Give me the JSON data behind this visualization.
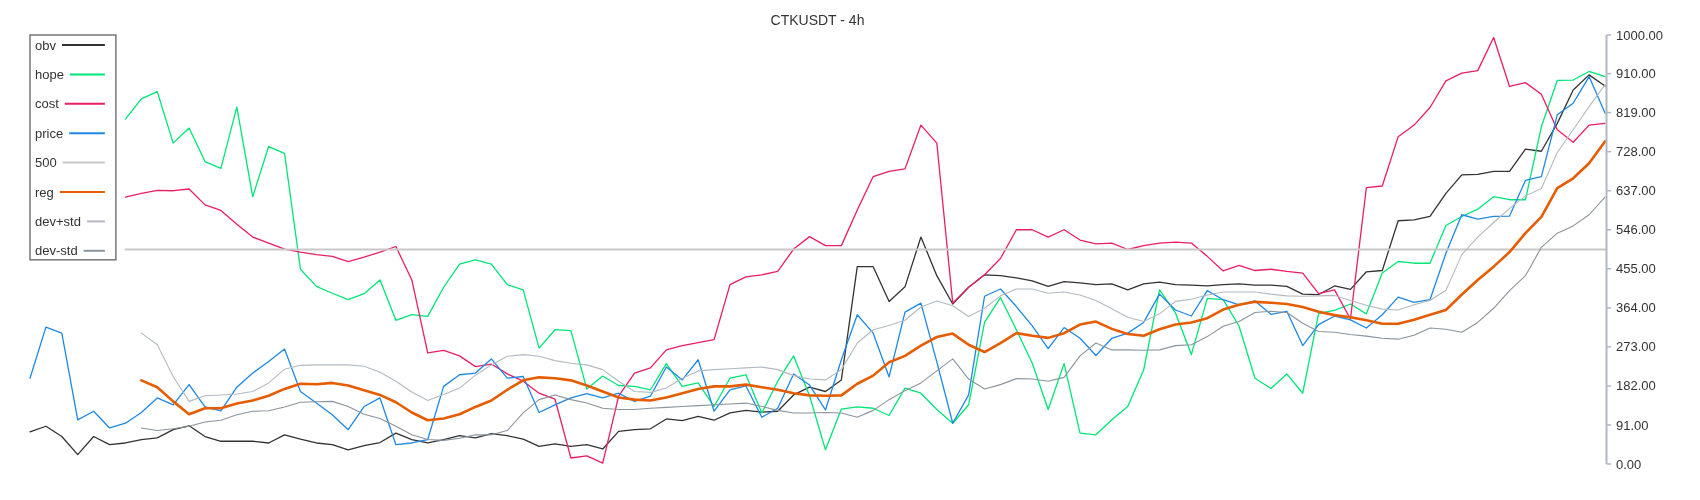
{
  "chart_data": {
    "type": "line",
    "title": "CTKUSDT - 4h",
    "categories": [
      null,
      null,
      null,
      null,
      null,
      null,
      null,
      null,
      null,
      null,
      null,
      null,
      null,
      null,
      null,
      null,
      null,
      null,
      null,
      null,
      null,
      null,
      null,
      null,
      null,
      null,
      null,
      null,
      null,
      null,
      null,
      null,
      null,
      null,
      null,
      null,
      null,
      null,
      null,
      null,
      null,
      null,
      null,
      null,
      null,
      null,
      null,
      null,
      null,
      null,
      null,
      null,
      null,
      null,
      null,
      null,
      null,
      null,
      null,
      null,
      null,
      null,
      null,
      null,
      null,
      null,
      null,
      null,
      null,
      null,
      null,
      null,
      null,
      null,
      null,
      null,
      null,
      null,
      null,
      null,
      null,
      null,
      null,
      null,
      null,
      null,
      null,
      null,
      null,
      null,
      null,
      null,
      null,
      null,
      null,
      null,
      null,
      null,
      null,
      null
    ],
    "series": [
      {
        "name": "obv",
        "color": "#333333",
        "values": [
          75,
          88,
          64,
          22,
          64,
          45,
          49,
          57,
          61,
          80,
          89,
          64,
          53,
          53,
          53,
          49,
          68,
          58,
          49,
          45,
          33,
          43,
          50,
          72,
          57,
          49,
          57,
          66,
          61,
          71,
          66,
          58,
          41,
          47,
          41,
          45,
          35,
          76,
          80,
          82,
          105,
          101,
          111,
          102,
          119,
          125,
          121,
          123,
          161,
          179,
          169,
          196,
          460,
          460,
          379,
          413,
          529,
          439,
          373,
          412,
          441,
          439,
          434,
          427,
          414,
          425,
          422,
          418,
          420,
          406,
          420,
          424,
          418,
          417,
          415,
          418,
          420,
          417,
          417,
          414,
          396,
          395,
          415,
          407,
          448,
          451,
          567,
          569,
          577,
          631,
          674,
          675,
          682,
          682,
          734,
          729,
          794,
          872,
          907,
          881
        ]
      },
      {
        "name": "hope",
        "color": "#00e676",
        "values": [
          null,
          null,
          null,
          null,
          null,
          null,
          804,
          851,
          868,
          748,
          783,
          705,
          689,
          832,
          623,
          740,
          724,
          454,
          414,
          398,
          383,
          397,
          429,
          335,
          348,
          344,
          412,
          466,
          476,
          466,
          418,
          406,
          270,
          313,
          311,
          175,
          205,
          183,
          181,
          173,
          234,
          181,
          189,
          134,
          200,
          208,
          119,
          193,
          252,
          159,
          33,
          128,
          133,
          130,
          113,
          177,
          165,
          127,
          95,
          138,
          330,
          388,
          313,
          235,
          127,
          234,
          72,
          68,
          103,
          134,
          219,
          406,
          352,
          255,
          386,
          383,
          321,
          200,
          176,
          210,
          165,
          351,
          358,
          373,
          350,
          445,
          472,
          468,
          468,
          556,
          577,
          594,
          623,
          616,
          616,
          786,
          894,
          895,
          915,
          903
        ]
      },
      {
        "name": "cost",
        "color": "#e91e63",
        "values": [
          null,
          null,
          null,
          null,
          null,
          null,
          622,
          631,
          638,
          637,
          641,
          604,
          591,
          559,
          529,
          515,
          501,
          494,
          488,
          484,
          472,
          482,
          494,
          507,
          429,
          259,
          265,
          252,
          227,
          233,
          210,
          193,
          165,
          151,
          14,
          19,
          2,
          158,
          212,
          224,
          266,
          276,
          283,
          290,
          418,
          436,
          441,
          449,
          501,
          530,
          509,
          509,
          592,
          670,
          682,
          688,
          790,
          748,
          375,
          412,
          441,
          479,
          546,
          546,
          529,
          546,
          522,
          513,
          515,
          500,
          509,
          515,
          517,
          515,
          484,
          450,
          463,
          451,
          454,
          449,
          445,
          397,
          406,
          338,
          644,
          648,
          763,
          790,
          831,
          893,
          911,
          917,
          994,
          880,
          889,
          862,
          779,
          750,
          790,
          794
        ]
      },
      {
        "name": "price",
        "color": "#1e88e5",
        "values": [
          200,
          319,
          305,
          103,
          123,
          84,
          95,
          120,
          154,
          138,
          185,
          133,
          124,
          179,
          212,
          239,
          268,
          169,
          142,
          115,
          80,
          134,
          154,
          45,
          49,
          57,
          181,
          208,
          212,
          245,
          200,
          204,
          120,
          138,
          154,
          164,
          154,
          165,
          146,
          158,
          226,
          196,
          243,
          123,
          173,
          182,
          109,
          130,
          210,
          184,
          126,
          243,
          348,
          305,
          203,
          354,
          375,
          238,
          95,
          161,
          391,
          408,
          367,
          322,
          269,
          318,
          293,
          253,
          293,
          305,
          330,
          396,
          359,
          345,
          404,
          383,
          371,
          380,
          349,
          356,
          276,
          325,
          345,
          336,
          317,
          348,
          389,
          377,
          383,
          491,
          581,
          571,
          577,
          578,
          661,
          670,
          814,
          841,
          903,
          818
        ]
      },
      {
        "name": "500",
        "color": "#c8c8c8",
        "values": [
          null,
          null,
          null,
          null,
          null,
          null,
          500,
          500,
          500,
          500,
          500,
          500,
          500,
          500,
          500,
          500,
          500,
          500,
          500,
          500,
          500,
          500,
          500,
          500,
          500,
          500,
          500,
          500,
          500,
          500,
          500,
          500,
          500,
          500,
          500,
          500,
          500,
          500,
          500,
          500,
          500,
          500,
          500,
          500,
          500,
          500,
          500,
          500,
          500,
          500,
          500,
          500,
          500,
          500,
          500,
          500,
          500,
          500,
          500,
          500,
          500,
          500,
          500,
          500,
          500,
          500,
          500,
          500,
          500,
          500,
          500,
          500,
          500,
          500,
          500,
          500,
          500,
          500,
          500,
          500,
          500,
          500,
          500,
          500,
          500,
          500,
          500,
          500,
          500,
          500,
          500,
          500,
          500,
          500,
          500,
          500,
          500,
          500,
          500,
          500
        ]
      },
      {
        "name": "reg",
        "color": "#e65c00",
        "values": [
          null,
          null,
          null,
          null,
          null,
          null,
          null,
          195,
          179,
          146,
          116,
          130,
          130,
          141,
          148,
          159,
          175,
          187,
          186,
          189,
          183,
          172,
          161,
          144,
          120,
          102,
          106,
          116,
          133,
          148,
          173,
          195,
          202,
          200,
          195,
          183,
          169,
          155,
          150,
          148,
          155,
          165,
          175,
          181,
          181,
          185,
          179,
          173,
          165,
          160,
          159,
          160,
          187,
          206,
          237,
          252,
          276,
          296,
          304,
          278,
          261,
          282,
          305,
          299,
          294,
          305,
          325,
          332,
          315,
          303,
          299,
          314,
          325,
          330,
          340,
          360,
          371,
          378,
          376,
          373,
          366,
          355,
          347,
          342,
          335,
          327,
          327,
          336,
          348,
          359,
          395,
          429,
          460,
          494,
          538,
          576,
          643,
          666,
          701,
          752
        ]
      },
      {
        "name": "dev+std",
        "color": "#b4bac0",
        "values": [
          null,
          null,
          null,
          null,
          null,
          null,
          null,
          305,
          278,
          204,
          146,
          159,
          161,
          163,
          169,
          189,
          221,
          230,
          231,
          231,
          231,
          228,
          214,
          193,
          168,
          148,
          162,
          177,
          207,
          231,
          251,
          255,
          251,
          241,
          235,
          231,
          220,
          193,
          169,
          167,
          177,
          200,
          217,
          220,
          222,
          224,
          226,
          220,
          206,
          198,
          196,
          220,
          282,
          313,
          323,
          335,
          366,
          380,
          369,
          344,
          363,
          392,
          408,
          408,
          398,
          401,
          394,
          381,
          362,
          342,
          332,
          350,
          379,
          384,
          394,
          401,
          401,
          401,
          396,
          392,
          391,
          392,
          393,
          381,
          370,
          361,
          359,
          371,
          381,
          405,
          488,
          529,
          563,
          596,
          625,
          642,
          726,
          779,
          833,
          884
        ]
      },
      {
        "name": "dev-std",
        "color": "#8a949e",
        "values": [
          null,
          null,
          null,
          null,
          null,
          null,
          null,
          84,
          78,
          82,
          88,
          98,
          102,
          115,
          123,
          124,
          133,
          144,
          145,
          146,
          134,
          116,
          106,
          88,
          68,
          57,
          55,
          60,
          68,
          68,
          78,
          119,
          150,
          161,
          150,
          142,
          130,
          127,
          127,
          130,
          132,
          134,
          136,
          138,
          140,
          142,
          134,
          125,
          119,
          119,
          120,
          119,
          109,
          125,
          150,
          171,
          189,
          217,
          245,
          198,
          175,
          185,
          199,
          198,
          193,
          202,
          252,
          282,
          266,
          266,
          265,
          266,
          276,
          278,
          297,
          321,
          332,
          353,
          356,
          353,
          328,
          309,
          307,
          302,
          298,
          293,
          291,
          300,
          317,
          314,
          307,
          330,
          363,
          404,
          439,
          505,
          538,
          555,
          581,
          622
        ]
      }
    ],
    "ylim": [
      0,
      1000
    ],
    "yticks": [
      {
        "value": 0,
        "label": "0.00"
      },
      {
        "value": 91,
        "label": "91.00"
      },
      {
        "value": 182,
        "label": "182.00"
      },
      {
        "value": 273,
        "label": "273.00"
      },
      {
        "value": 364,
        "label": "364.00"
      },
      {
        "value": 455,
        "label": "455.00"
      },
      {
        "value": 546,
        "label": "546.00"
      },
      {
        "value": 637,
        "label": "637.00"
      },
      {
        "value": 728,
        "label": "728.00"
      },
      {
        "value": 819,
        "label": "819.00"
      },
      {
        "value": 910,
        "label": "910.00"
      },
      {
        "value": 1000,
        "label": "1000.00"
      }
    ],
    "legend": "top left"
  }
}
